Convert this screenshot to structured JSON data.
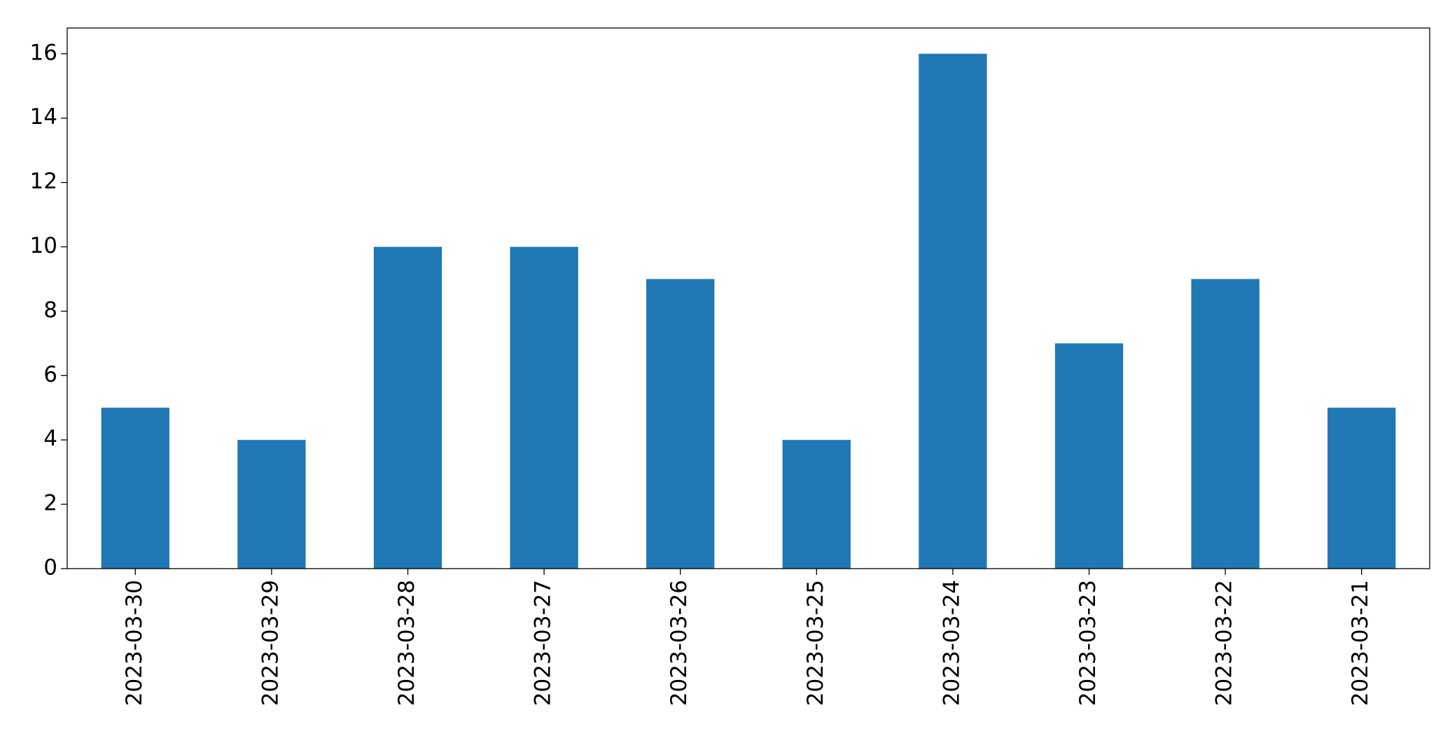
{
  "chart_data": {
    "type": "bar",
    "categories": [
      "2023-03-30",
      "2023-03-29",
      "2023-03-28",
      "2023-03-27",
      "2023-03-26",
      "2023-03-25",
      "2023-03-24",
      "2023-03-23",
      "2023-03-22",
      "2023-03-21"
    ],
    "values": [
      5,
      4,
      10,
      10,
      9,
      4,
      16,
      7,
      9,
      5
    ],
    "color": "#1f77b4",
    "ylim": [
      0,
      16.8
    ],
    "yticks": [
      0,
      2,
      4,
      6,
      8,
      10,
      12,
      14,
      16
    ],
    "grid": false
  }
}
